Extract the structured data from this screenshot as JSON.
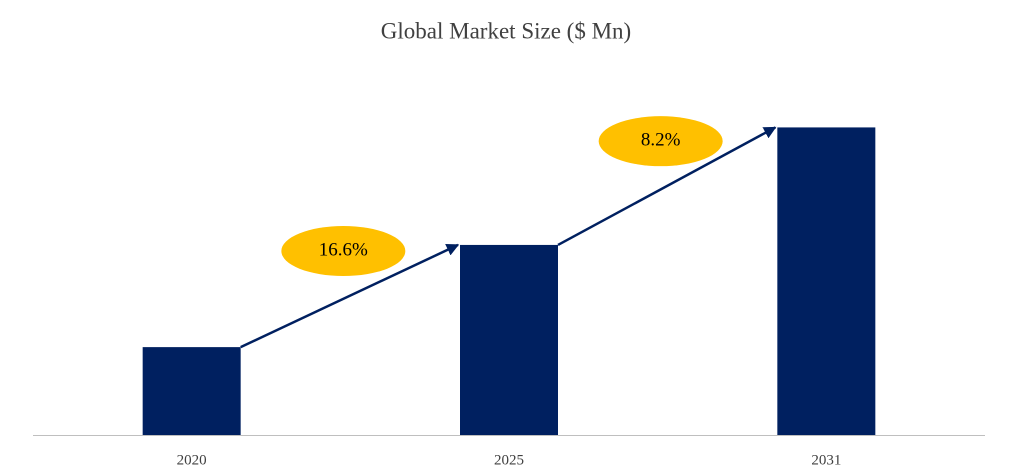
{
  "chart_data": {
    "type": "bar",
    "title": "Global Market Size ($ Mn)",
    "categories": [
      "2020",
      "2025",
      "2031"
    ],
    "values": [
      86,
      186,
      301
    ],
    "color": "#002060",
    "ylim": [
      0,
      320
    ],
    "annotations": [
      {
        "text": "16.6%",
        "color": "#ffc000"
      },
      {
        "text": "8.2%",
        "color": "#ffc000"
      }
    ]
  }
}
